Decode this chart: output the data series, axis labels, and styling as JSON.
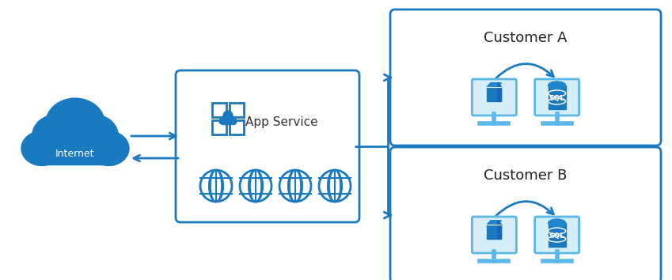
{
  "bg_color": "#ffffff",
  "blue": "#1a7abf",
  "dark_blue": "#1565C0",
  "light_blue": "#5BB8E8",
  "arrow_color": "#1a7abf",
  "internet_label": "Internet",
  "appservice_label": "App Service",
  "customer_a_label": "Customer A",
  "customer_b_label": "Customer B",
  "figsize": [
    8.49,
    3.54
  ],
  "dpi": 100
}
